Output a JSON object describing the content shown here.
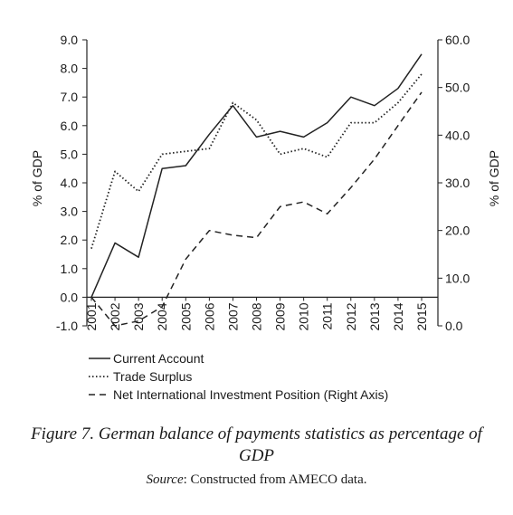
{
  "figure": {
    "title": "Figure 7.  German balance of payments statistics as percentage of GDP",
    "source_label": "Source",
    "source_text": ": Constructed from AMECO data."
  },
  "chart_data": {
    "type": "line",
    "x": [
      "2001",
      "2002",
      "2003",
      "2004",
      "2005",
      "2006",
      "2007",
      "2008",
      "2009",
      "2010",
      "2011",
      "2012",
      "2013",
      "2014",
      "2015"
    ],
    "series": [
      {
        "name": "Current Account",
        "axis": "left",
        "style": "solid",
        "values": [
          0.0,
          1.9,
          1.4,
          4.5,
          4.6,
          5.7,
          6.7,
          5.6,
          5.8,
          5.6,
          6.1,
          7.0,
          6.7,
          7.3,
          8.5
        ]
      },
      {
        "name": "Trade Surplus",
        "axis": "left",
        "style": "dotted",
        "values": [
          1.7,
          4.4,
          3.7,
          5.0,
          5.1,
          5.2,
          6.8,
          6.2,
          5.0,
          5.2,
          4.9,
          6.1,
          6.1,
          6.8,
          7.8
        ]
      },
      {
        "name": "Net International Investment Position (Right Axis)",
        "axis": "right",
        "style": "dashed",
        "values": [
          6.0,
          0.0,
          1.0,
          4.0,
          14.0,
          20.0,
          19.0,
          18.5,
          25.0,
          26.0,
          23.5,
          29.0,
          35.0,
          42.0,
          49.0
        ]
      }
    ],
    "y_left": {
      "label": "% of GDP",
      "ylim": [
        -1.0,
        9.0
      ],
      "ticks": [
        "-1.0",
        "0.0",
        "1.0",
        "2.0",
        "3.0",
        "4.0",
        "5.0",
        "6.0",
        "7.0",
        "8.0",
        "9.0"
      ]
    },
    "y_right": {
      "label": "% of GDP",
      "ylim": [
        0.0,
        60.0
      ],
      "ticks": [
        "0.0",
        "10.0",
        "20.0",
        "30.0",
        "40.0",
        "50.0",
        "60.0"
      ]
    },
    "grid": false,
    "legend_position": "bottom-left"
  }
}
